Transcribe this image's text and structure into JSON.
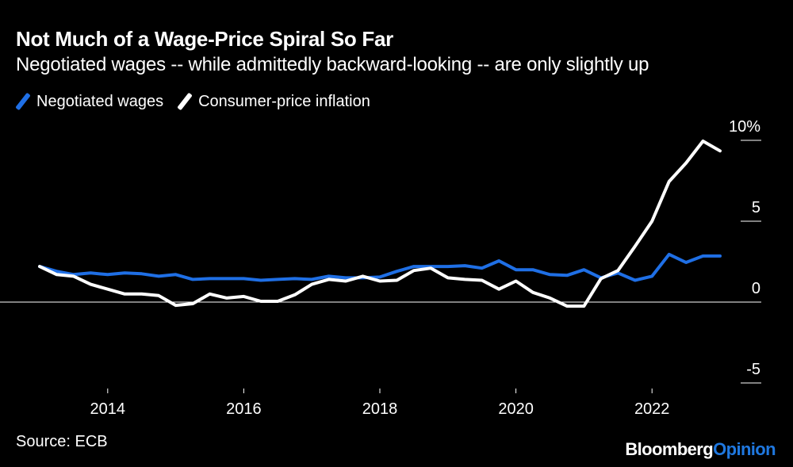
{
  "title": "Not Much of a Wage-Price Spiral So Far",
  "subtitle": "Negotiated wages -- while admittedly backward-looking -- are only slightly up",
  "legend": [
    {
      "label": "Negotiated wages",
      "color": "#1f6fe5"
    },
    {
      "label": "Consumer-price inflation",
      "color": "#ffffff"
    }
  ],
  "source": "Source: ECB",
  "brand": {
    "main": "Bloomberg",
    "accent": "Opinion"
  },
  "chart_data": {
    "type": "line",
    "title": "Not Much of a Wage-Price Spiral So Far",
    "xlabel": "",
    "ylabel": "",
    "xlim": [
      2013.0,
      2023.0
    ],
    "ylim": [
      -5,
      10
    ],
    "y_ticks": [
      10,
      5,
      0,
      -5
    ],
    "y_tick_labels": [
      "10%",
      "5",
      "0",
      "-5"
    ],
    "x_ticks": [
      2014,
      2016,
      2018,
      2020,
      2022
    ],
    "x_tick_labels": [
      "2014",
      "2016",
      "2018",
      "2020",
      "2022"
    ],
    "zero_line": true,
    "legend_position": "top-left",
    "series": [
      {
        "name": "Negotiated wages",
        "color": "#1f6fe5",
        "x": [
          2013.0,
          2013.25,
          2013.5,
          2013.75,
          2014.0,
          2014.25,
          2014.5,
          2014.75,
          2015.0,
          2015.25,
          2015.5,
          2015.75,
          2016.0,
          2016.25,
          2016.5,
          2016.75,
          2017.0,
          2017.25,
          2017.5,
          2017.75,
          2018.0,
          2018.25,
          2018.5,
          2018.75,
          2019.0,
          2019.25,
          2019.5,
          2019.75,
          2020.0,
          2020.25,
          2020.5,
          2020.75,
          2021.0,
          2021.25,
          2021.5,
          2021.75,
          2022.0,
          2022.25,
          2022.5,
          2022.75,
          2023.0
        ],
        "values": [
          2.2,
          1.9,
          1.7,
          1.8,
          1.7,
          1.8,
          1.75,
          1.6,
          1.7,
          1.4,
          1.45,
          1.45,
          1.45,
          1.35,
          1.4,
          1.45,
          1.4,
          1.6,
          1.5,
          1.5,
          1.55,
          1.9,
          2.2,
          2.2,
          2.2,
          2.25,
          2.1,
          2.55,
          2.0,
          2.0,
          1.7,
          1.65,
          2.0,
          1.5,
          1.8,
          1.35,
          1.6,
          2.95,
          2.45,
          2.85,
          2.85
        ]
      },
      {
        "name": "Consumer-price inflation",
        "color": "#ffffff",
        "x": [
          2013.0,
          2013.25,
          2013.5,
          2013.75,
          2014.0,
          2014.25,
          2014.5,
          2014.75,
          2015.0,
          2015.25,
          2015.5,
          2015.75,
          2016.0,
          2016.25,
          2016.5,
          2016.75,
          2017.0,
          2017.25,
          2017.5,
          2017.75,
          2018.0,
          2018.25,
          2018.5,
          2018.75,
          2019.0,
          2019.25,
          2019.5,
          2019.75,
          2020.0,
          2020.25,
          2020.5,
          2020.75,
          2021.0,
          2021.25,
          2021.5,
          2021.75,
          2022.0,
          2022.25,
          2022.5,
          2022.75,
          2023.0
        ],
        "values": [
          2.2,
          1.7,
          1.6,
          1.1,
          0.8,
          0.5,
          0.5,
          0.4,
          -0.2,
          -0.1,
          0.5,
          0.25,
          0.35,
          0.05,
          0.05,
          0.45,
          1.1,
          1.4,
          1.3,
          1.6,
          1.3,
          1.35,
          1.95,
          2.1,
          1.5,
          1.4,
          1.35,
          0.8,
          1.3,
          0.6,
          0.25,
          -0.25,
          -0.25,
          1.45,
          1.95,
          3.45,
          5.0,
          7.45,
          8.6,
          9.95,
          9.35
        ]
      }
    ]
  }
}
